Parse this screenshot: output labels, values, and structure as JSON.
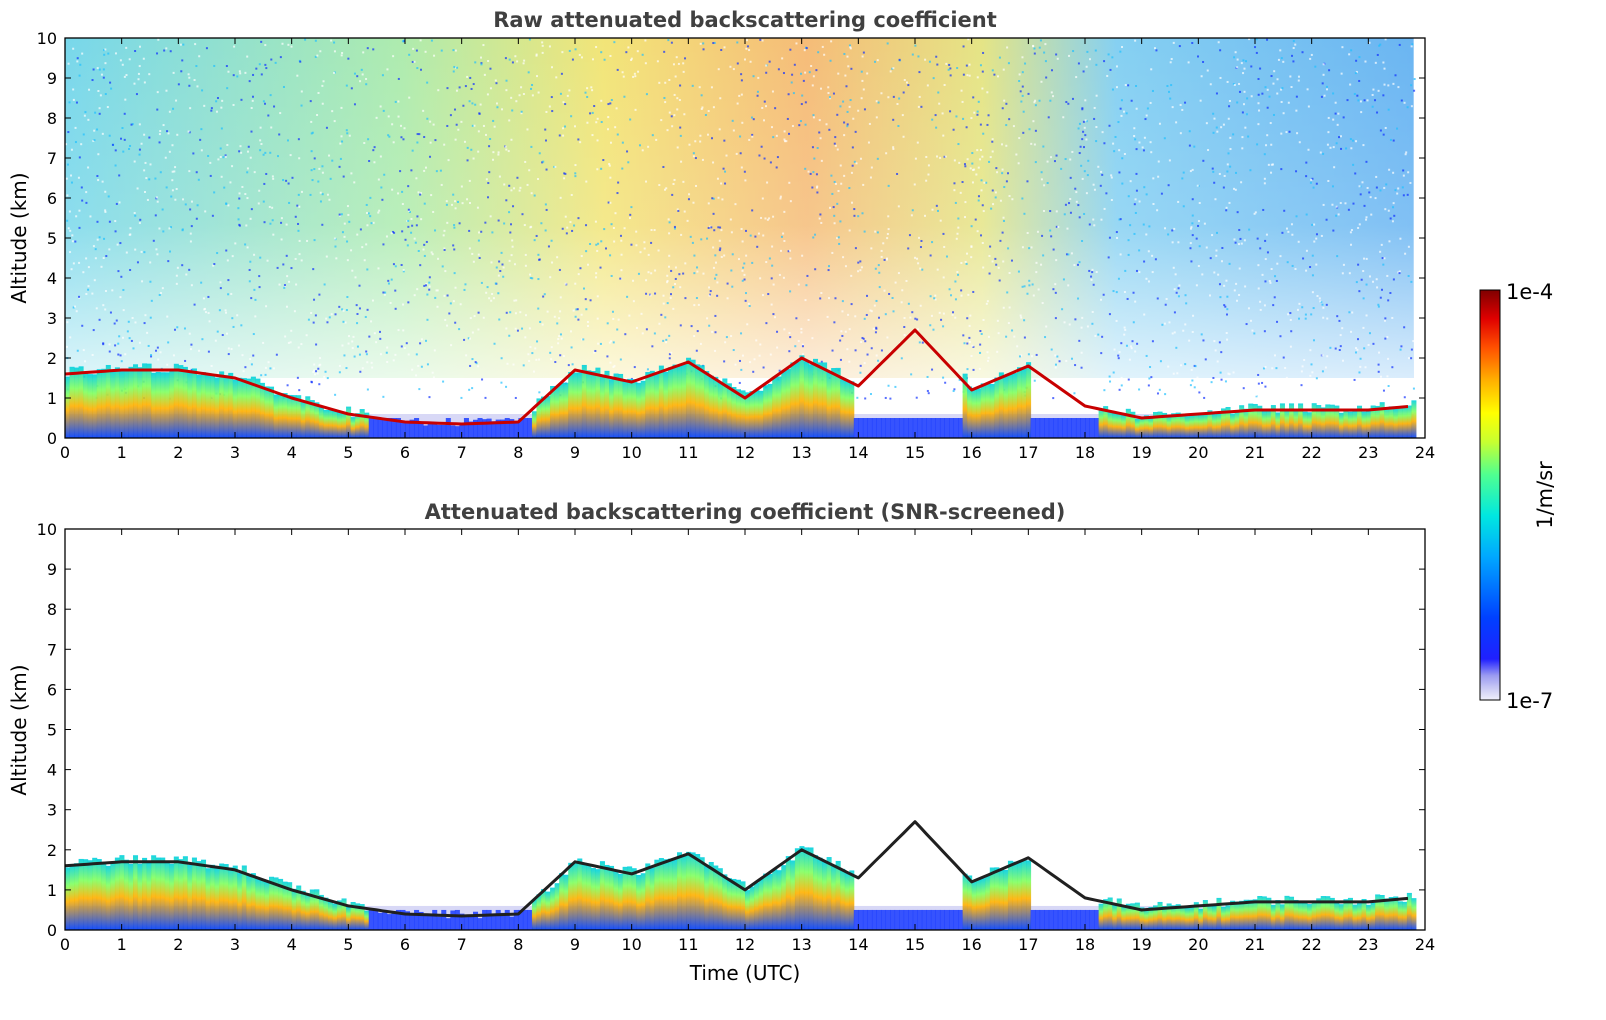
{
  "chart_data": [
    {
      "type": "heatmap",
      "title": "Raw attenuated backscattering coefficient",
      "xlabel": "",
      "ylabel": "Altitude (km)",
      "xlim": [
        0,
        24
      ],
      "ylim": [
        0,
        10
      ],
      "xticks": [
        "0",
        "1",
        "2",
        "3",
        "4",
        "5",
        "6",
        "7",
        "8",
        "9",
        "10",
        "11",
        "12",
        "13",
        "14",
        "15",
        "16",
        "17",
        "18",
        "19",
        "20",
        "21",
        "22",
        "23",
        "24"
      ],
      "yticks": [
        "0",
        "1",
        "2",
        "3",
        "4",
        "5",
        "6",
        "7",
        "8",
        "9",
        "10"
      ],
      "features": [
        {
          "name": "cloud/aerosol layer top",
          "x": [
            0,
            1,
            2,
            3,
            4,
            5,
            6,
            7,
            8,
            9,
            10,
            11,
            12,
            13,
            14,
            15,
            16,
            17,
            18,
            19,
            20,
            21,
            22,
            23,
            23.8
          ],
          "y": [
            1.6,
            1.7,
            1.7,
            1.5,
            1.0,
            0.6,
            0.4,
            0.35,
            0.4,
            1.7,
            1.4,
            1.9,
            1.0,
            2.0,
            1.3,
            2.7,
            1.2,
            1.8,
            0.8,
            0.5,
            0.6,
            0.7,
            0.7,
            0.7,
            0.8
          ]
        }
      ],
      "noise_background": "high noise aloft, strongest 8-15 UTC"
    },
    {
      "type": "heatmap",
      "title": "Attenuated backscattering coefficient (SNR-screened)",
      "xlabel": "Time (UTC)",
      "ylabel": "Altitude (km)",
      "xlim": [
        0,
        24
      ],
      "ylim": [
        0,
        10
      ],
      "xticks": [
        "0",
        "1",
        "2",
        "3",
        "4",
        "5",
        "6",
        "7",
        "8",
        "9",
        "10",
        "11",
        "12",
        "13",
        "14",
        "15",
        "16",
        "17",
        "18",
        "19",
        "20",
        "21",
        "22",
        "23",
        "24"
      ],
      "yticks": [
        "0",
        "1",
        "2",
        "3",
        "4",
        "5",
        "6",
        "7",
        "8",
        "9",
        "10"
      ],
      "features": [
        {
          "name": "cloud/aerosol layer top",
          "x": [
            0,
            1,
            2,
            3,
            4,
            5,
            6,
            7,
            8,
            9,
            10,
            11,
            12,
            13,
            14,
            15,
            16,
            17,
            18,
            19,
            20,
            21,
            22,
            23,
            23.8
          ],
          "y": [
            1.6,
            1.7,
            1.7,
            1.5,
            1.0,
            0.6,
            0.4,
            0.35,
            0.4,
            1.7,
            1.4,
            1.9,
            1.0,
            2.0,
            1.3,
            2.7,
            1.2,
            1.8,
            0.8,
            0.5,
            0.6,
            0.7,
            0.7,
            0.7,
            0.8
          ]
        }
      ]
    }
  ],
  "colorbar": {
    "max_label": "1e-4",
    "min_label": "1e-7",
    "units": "1/m/sr",
    "colors": [
      "#e8e8fa",
      "#b8b8f0",
      "#8080f0",
      "#0000ff",
      "#0050ff",
      "#00a0ff",
      "#00e0e0",
      "#40ffa0",
      "#c0ff40",
      "#ffff00",
      "#ffb000",
      "#ff5000",
      "#e00000",
      "#800000"
    ]
  }
}
